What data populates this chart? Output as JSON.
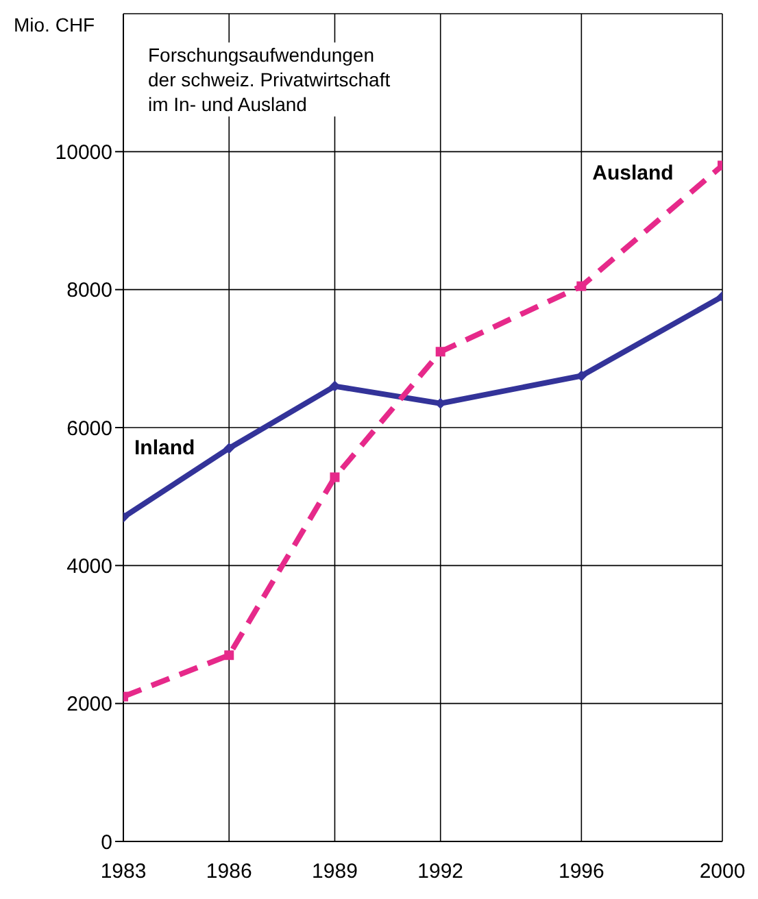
{
  "chart_data": {
    "type": "line",
    "title": "Forschungsaufwendungen\nder schweiz. Privatwirtschaft\nim In- und Ausland",
    "ylabel": "Mio. CHF",
    "x": [
      1983,
      1986,
      1989,
      1992,
      1996,
      2000
    ],
    "series": [
      {
        "name": "Inland",
        "color": "#333399",
        "values": [
          4700,
          5700,
          6600,
          6350,
          6750,
          7900
        ],
        "marker": "diamond",
        "line_style": "solid"
      },
      {
        "name": "Ausland",
        "color": "#e6298a",
        "values": [
          2100,
          2700,
          5280,
          7100,
          8050,
          9800
        ],
        "marker": "square",
        "line_style": "dashed"
      }
    ],
    "xlim": [
      1983,
      2000
    ],
    "xticks": [
      1983,
      1986,
      1989,
      1992,
      1996,
      2000
    ],
    "ylim": [
      0,
      12000
    ],
    "yticks": [
      0,
      2000,
      4000,
      6000,
      8000,
      10000
    ],
    "grid": true,
    "legend": false
  }
}
